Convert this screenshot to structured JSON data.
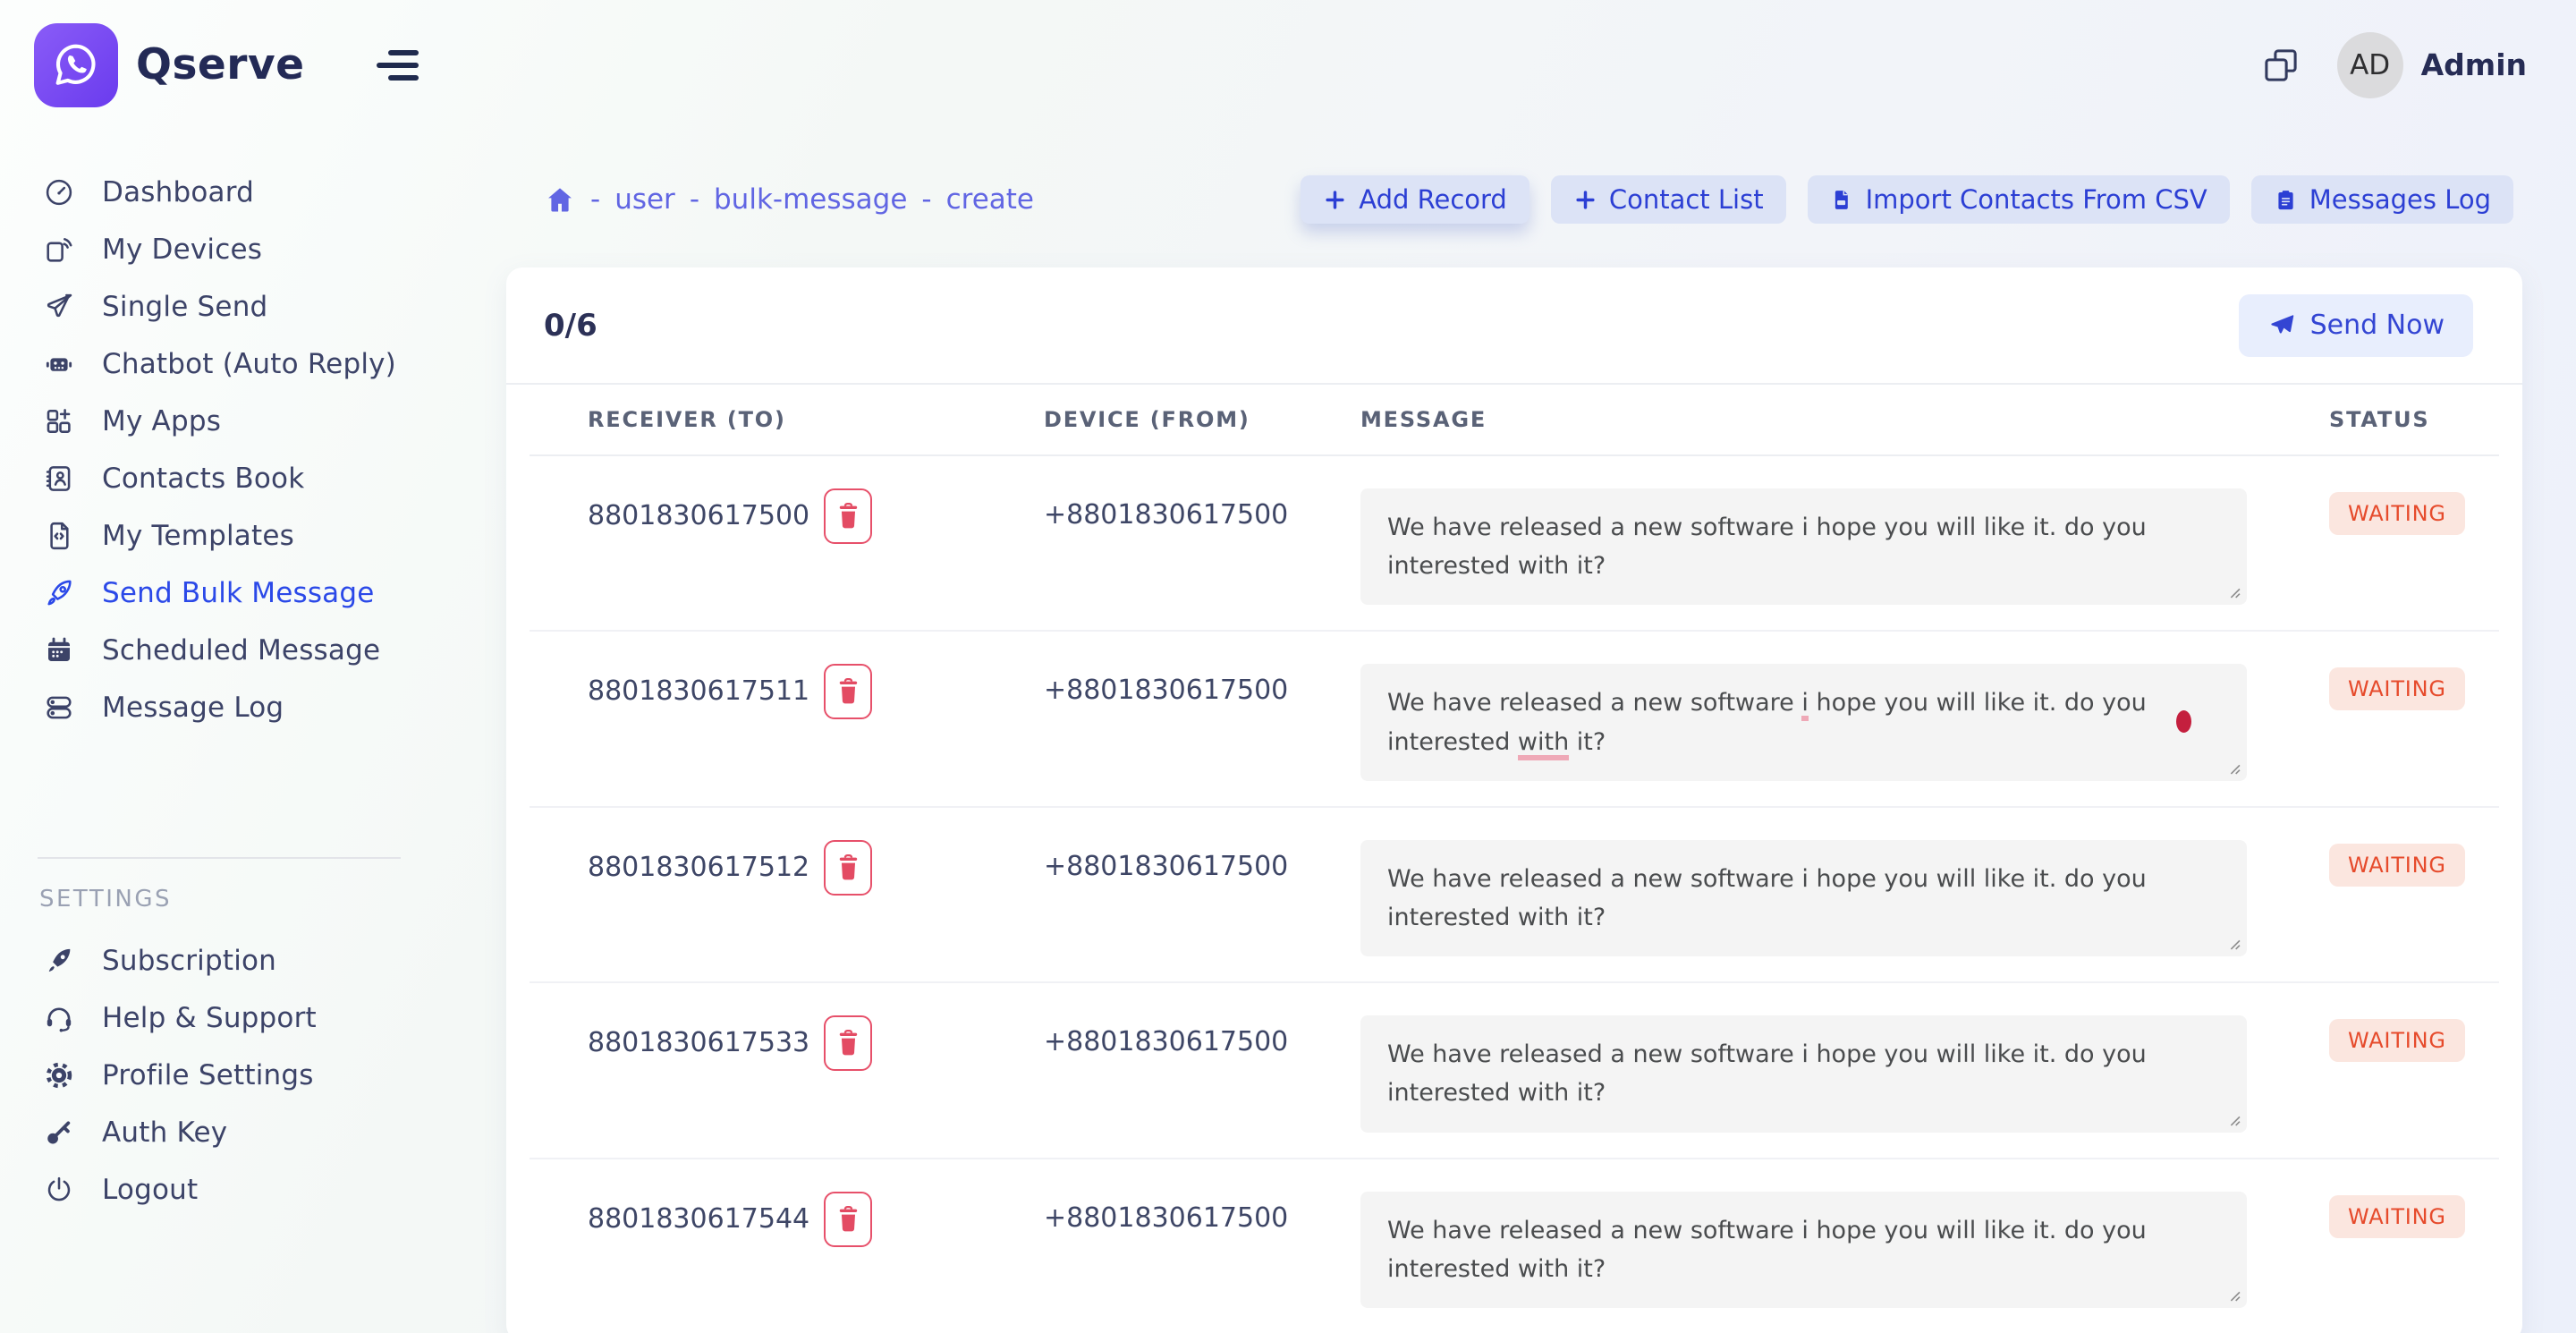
{
  "brand": {
    "name": "Qserve",
    "logo_icon": "whatsapp"
  },
  "topbar": {
    "menu_icon": "hamburger",
    "window_icon": "overlap-squares",
    "user_initials": "AD",
    "user_name": "Admin"
  },
  "sidebar": {
    "items": [
      {
        "label": "Dashboard",
        "icon": "gauge"
      },
      {
        "label": "My Devices",
        "icon": "device"
      },
      {
        "label": "Single Send",
        "icon": "paper-plane"
      },
      {
        "label": "Chatbot (Auto Reply)",
        "icon": "robot"
      },
      {
        "label": "My Apps",
        "icon": "apps"
      },
      {
        "label": "Contacts Book",
        "icon": "contacts"
      },
      {
        "label": "My Templates",
        "icon": "template"
      },
      {
        "label": "Send Bulk Message",
        "icon": "rocket",
        "active": true
      },
      {
        "label": "Scheduled Message",
        "icon": "calendar"
      },
      {
        "label": "Message Log",
        "icon": "toggles"
      }
    ],
    "settings_label": "SETTINGS",
    "settings_items": [
      {
        "label": "Subscription",
        "icon": "rocket-filled"
      },
      {
        "label": "Help & Support",
        "icon": "headset"
      },
      {
        "label": "Profile Settings",
        "icon": "gear"
      },
      {
        "label": "Auth Key",
        "icon": "key"
      },
      {
        "label": "Logout",
        "icon": "power"
      }
    ]
  },
  "breadcrumb": {
    "home_icon": "home",
    "separator": "-",
    "items": [
      "user",
      "bulk-message",
      "create"
    ]
  },
  "actions": [
    {
      "label": "Add Record",
      "icon": "plus",
      "emphasized": true
    },
    {
      "label": "Contact List",
      "icon": "plus"
    },
    {
      "label": "Import Contacts From CSV",
      "icon": "file-csv"
    },
    {
      "label": "Messages Log",
      "icon": "clipboard"
    }
  ],
  "bulk": {
    "counter": "0/6",
    "send_button": {
      "label": "Send Now",
      "icon": "send-plane"
    },
    "table": {
      "headers": [
        "RECEIVER (TO)",
        "DEVICE (FROM)",
        "MESSAGE",
        "STATUS"
      ],
      "rows": [
        {
          "receiver": "8801830617500",
          "device": "+8801830617500",
          "message": "We have released a new software i hope you will like it. do you interested with it?",
          "status": "WAITING"
        },
        {
          "receiver": "8801830617511",
          "device": "+8801830617500",
          "message": "We have released a new software i hope you will like it. do you interested with it?",
          "status": "WAITING",
          "spellcheck_underlines": [
            "i",
            "with"
          ],
          "spellcheck_dot": true
        },
        {
          "receiver": "8801830617512",
          "device": "+8801830617500",
          "message": "We have released a new software i hope you will like it. do you interested with it?",
          "status": "WAITING"
        },
        {
          "receiver": "8801830617533",
          "device": "+8801830617500",
          "message": "We have released a new software i hope you will like it. do you interested with it?",
          "status": "WAITING"
        },
        {
          "receiver": "8801830617544",
          "device": "+8801830617500",
          "message": "We have released a new software i hope you will like it. do you interested with it?",
          "status": "WAITING"
        }
      ]
    }
  },
  "colors": {
    "brand_purple": "#7247f0",
    "active_blue": "#2b49e8",
    "breadcrumb": "#6166e3",
    "action_btn_bg": "#dce3f6",
    "action_btn_text": "#2c3fd4",
    "send_btn_bg": "#e8eefd",
    "send_btn_text": "#3345d3",
    "badge_bg": "#fbe6df",
    "badge_text": "#e64b2c",
    "trash_red": "#e7506a"
  }
}
